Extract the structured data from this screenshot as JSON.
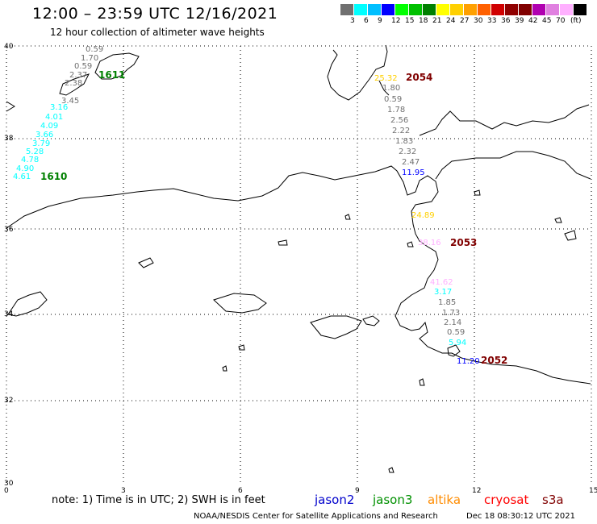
{
  "header": {
    "title": "12:00 – 23:59 UTC 12/16/2021",
    "subtitle": "12 hour collection of altimeter wave heights"
  },
  "colorbar": {
    "colors": [
      "#707070",
      "#00ffff",
      "#00bfff",
      "#0000ff",
      "#00ff00",
      "#00c000",
      "#008000",
      "#ffff00",
      "#ffd000",
      "#ffa000",
      "#ff6000",
      "#d00000",
      "#900000",
      "#800000",
      "#b000b0",
      "#e080e0",
      "#ffb0ff",
      "#000000"
    ],
    "labels": [
      "3",
      "6",
      "9",
      "12",
      "15",
      "18",
      "21",
      "24",
      "27",
      "30",
      "33",
      "36",
      "39",
      "42",
      "45",
      "70",
      "(ft)"
    ]
  },
  "axes": {
    "y_ticks": [
      "40",
      "38",
      "36",
      "34",
      "32",
      "30"
    ],
    "x_ticks": [
      "0",
      "3",
      "6",
      "9",
      "12",
      "15"
    ]
  },
  "tracks": {
    "track_1611": {
      "id": "1611",
      "values": [
        "0.59",
        "1.70",
        "0.59",
        "2.37",
        "2.38",
        "3.45",
        "3.16",
        "4.01",
        "4.09",
        "3.66",
        "3.79",
        "5.28",
        "4.78",
        "4.90",
        "4.61"
      ],
      "colors": [
        "#707070",
        "#707070",
        "#707070",
        "#707070",
        "#707070",
        "#707070",
        "#00ffff",
        "#00ffff",
        "#00ffff",
        "#00ffff",
        "#00ffff",
        "#00ffff",
        "#00ffff",
        "#00ffff",
        "#00ffff"
      ]
    },
    "track_1610": {
      "id": "1610"
    },
    "track_2054": {
      "id": "2054",
      "values": [
        "25.32",
        "1.80",
        "0.59",
        "1.78",
        "2.56",
        "2.22",
        "1.83",
        "2.32",
        "2.47",
        "11.95"
      ],
      "colors": [
        "#ffd000",
        "#707070",
        "#707070",
        "#707070",
        "#707070",
        "#707070",
        "#707070",
        "#707070",
        "#707070",
        "#0000ff"
      ]
    },
    "track_2053": {
      "id": "2053",
      "values": [
        "24.89",
        "38.16"
      ],
      "colors": [
        "#ffd000",
        "#ffb0ff"
      ]
    },
    "track_2052": {
      "id": "2052",
      "values": [
        "41.62",
        "3.17",
        "1.85",
        "1.73",
        "2.14",
        "0.59",
        "5.94",
        "11.20"
      ],
      "colors": [
        "#ffb0ff",
        "#00ffff",
        "#707070",
        "#707070",
        "#707070",
        "#707070",
        "#00ffff",
        "#0000ff"
      ]
    }
  },
  "footer": {
    "note": "note:  1) Time is in UTC;  2) SWH is in feet",
    "satellites": [
      {
        "name": "jason2",
        "color": "#0000cc"
      },
      {
        "name": "jason3",
        "color": "#009000"
      },
      {
        "name": "altika",
        "color": "#ff8c00"
      },
      {
        "name": "cryosat",
        "color": "#ff0000"
      },
      {
        "name": "s3a",
        "color": "#800000"
      }
    ],
    "credit": "NOAA/NESDIS Center for Satellite Applications and Research",
    "timestamp": "Dec 18 08:30:12 UTC 2021"
  }
}
